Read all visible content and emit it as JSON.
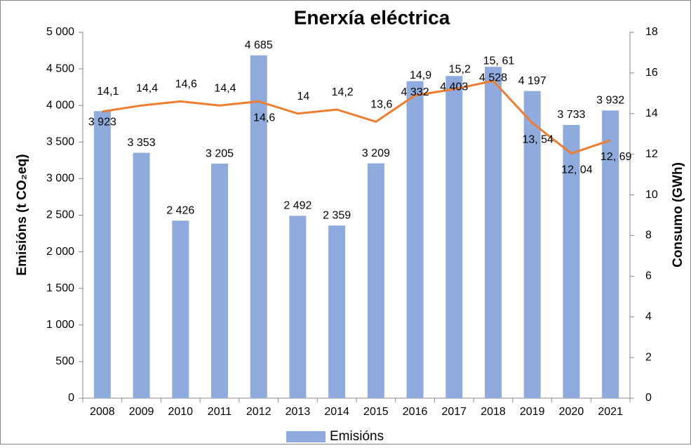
{
  "chart_data": {
    "type": "bar_line",
    "title": "Enerxía eléctrica",
    "ylabel": "Emisións (t CO₂eq)",
    "y2label": "Consumo (GWh)",
    "categories": [
      "2008",
      "2009",
      "2010",
      "2011",
      "2012",
      "2013",
      "2014",
      "2015",
      "2016",
      "2017",
      "2018",
      "2019",
      "2020",
      "2021"
    ],
    "series": [
      {
        "name": "Emisións",
        "type": "bar",
        "color": "#8faadc",
        "values": [
          3923,
          3353,
          2426,
          3205,
          4685,
          2492,
          2359,
          3209,
          4332,
          4403,
          4528,
          4197,
          3733,
          3932
        ],
        "value_labels": [
          "3 923",
          "3 353",
          "2 426",
          "3 205",
          "4 685",
          "2 492",
          "2 359",
          "3 209",
          "4 332",
          "4 403",
          "4 528",
          "4 197",
          "3 733",
          "3 932"
        ]
      },
      {
        "type": "line",
        "axis": "y2",
        "color": "#ed7d31",
        "values": [
          14.1,
          14.4,
          14.6,
          14.4,
          14.6,
          14,
          14.2,
          13.6,
          14.9,
          15.2,
          15.61,
          13.54,
          12.04,
          12.69
        ],
        "value_labels": [
          "14,1",
          "14,4",
          "14,6",
          "14,4",
          "14,6",
          "14",
          "14,2",
          "13,6",
          "14,9",
          "15,2",
          "15, 61",
          "13, 54",
          "12, 04",
          "12, 69"
        ]
      }
    ],
    "ylim": [
      0,
      5000
    ],
    "yticks": [
      0,
      500,
      {
        "value": 1000,
        "label": "1 000"
      },
      {
        "value": 1500,
        "label": "1 500"
      },
      {
        "value": 2000,
        "label": "2 000"
      },
      {
        "value": 2500,
        "label": "2 500"
      },
      {
        "value": 3000,
        "label": "3 000"
      },
      {
        "value": 3500,
        "label": "3 500"
      },
      {
        "value": 4000,
        "label": "4 000"
      },
      {
        "value": 4500,
        "label": "4 500"
      },
      {
        "value": 5000,
        "label": "5 000"
      }
    ],
    "y2lim": [
      0,
      18
    ],
    "y2ticks": [
      0,
      2,
      4,
      6,
      8,
      10,
      12,
      14,
      16,
      18
    ],
    "legend": "bottom"
  }
}
